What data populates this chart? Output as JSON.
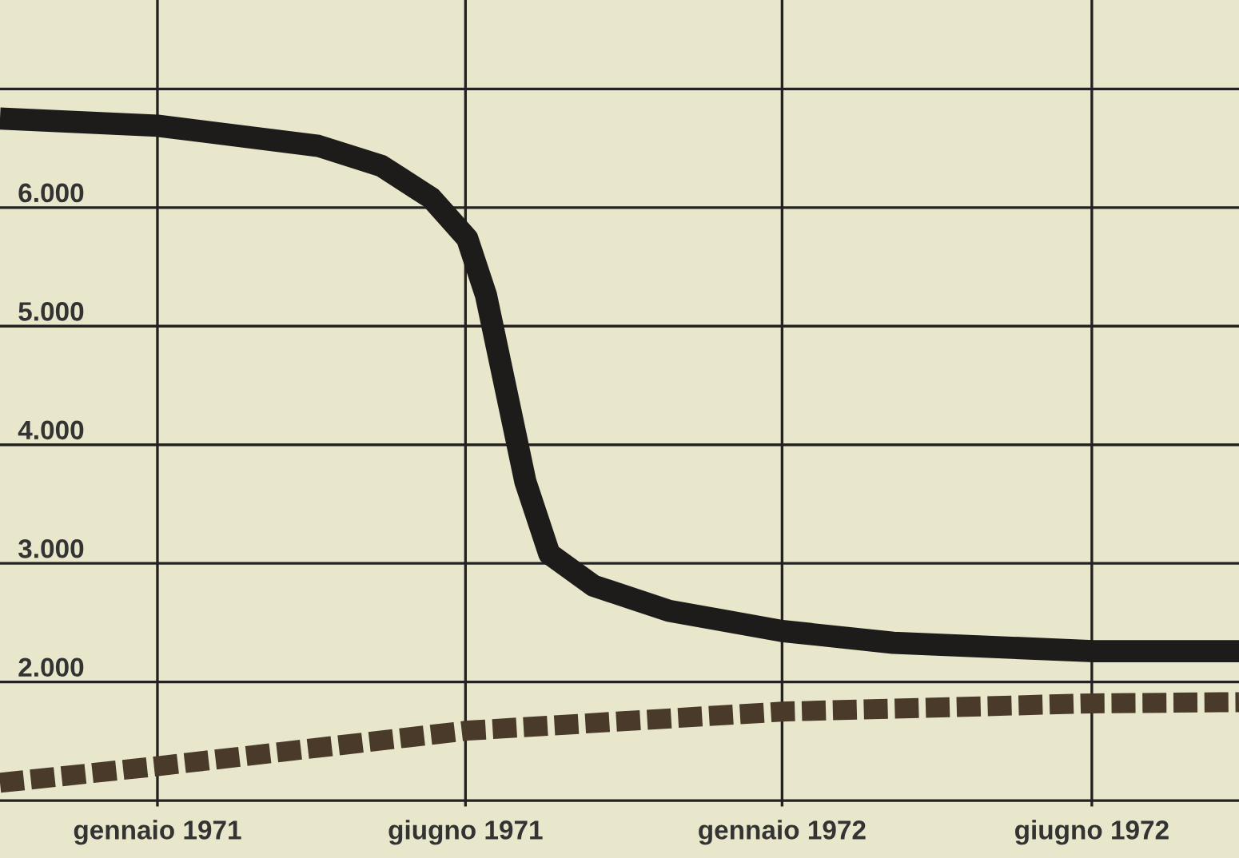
{
  "chart_data": {
    "type": "line",
    "grid": true,
    "xlim": [
      "1970-10-01",
      "1972-09-24"
    ],
    "ylim": [
      950,
      7750
    ],
    "xticks": [
      {
        "value": "1971-01-01",
        "label": "gennaio 1971"
      },
      {
        "value": "1971-06-30",
        "label": "giugno 1971"
      },
      {
        "value": "1972-01-01",
        "label": "gennaio 1972"
      },
      {
        "value": "1972-06-30",
        "label": "giugno 1972"
      }
    ],
    "yticks": [
      {
        "value": 1000,
        "label": null
      },
      {
        "value": 2000,
        "label": "2.000"
      },
      {
        "value": 3000,
        "label": "3.000"
      },
      {
        "value": 4000,
        "label": "4.000"
      },
      {
        "value": 5000,
        "label": "5.000"
      },
      {
        "value": 6000,
        "label": "6.000"
      },
      {
        "value": 7000,
        "label": null
      }
    ],
    "series": [
      {
        "color": "#1e1c1a",
        "line_style": "solid",
        "x": [
          "1970-10-01",
          "1971-01-01",
          "1971-04-05",
          "1971-05-12",
          "1971-06-10",
          "1971-07-01",
          "1971-07-12",
          "1971-07-23",
          "1971-08-04",
          "1971-08-18",
          "1971-09-13",
          "1971-10-27",
          "1972-01-01",
          "1972-03-06",
          "1972-07-01",
          "1972-09-24"
        ],
        "values": [
          6750,
          6690,
          6520,
          6350,
          6080,
          5740,
          5260,
          4510,
          3690,
          3080,
          2810,
          2600,
          2430,
          2330,
          2260,
          2260
        ]
      },
      {
        "color": "#4a3a2a",
        "line_style": "dashed",
        "x": [
          "1970-10-01",
          "1971-01-01",
          "1971-07-01",
          "1972-01-01",
          "1972-07-01",
          "1972-09-24"
        ],
        "values": [
          1150,
          1290,
          1590,
          1750,
          1820,
          1830
        ]
      }
    ]
  }
}
